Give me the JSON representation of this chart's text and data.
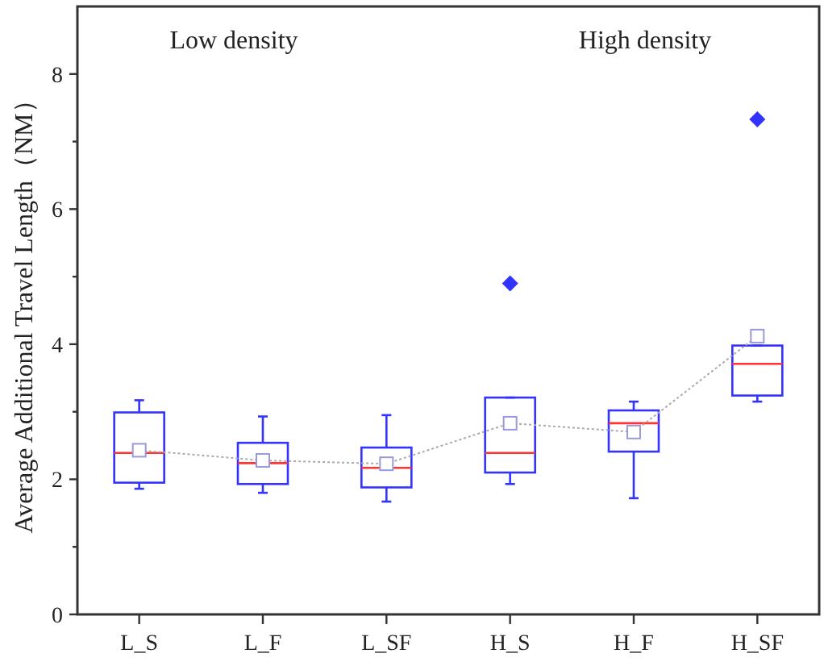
{
  "chart_data": {
    "type": "box",
    "ylabel": "Average Additional Travel Length（NM）",
    "annotations": [
      "Low density",
      "High density"
    ],
    "categories": [
      "L_S",
      "L_F",
      "L_SF",
      "H_S",
      "H_F",
      "H_SF"
    ],
    "color": "#3333ff",
    "marker": "diamond",
    "ylim": [
      0,
      9
    ],
    "yticks": [
      0,
      {
        "value": 1,
        "label": null
      },
      2,
      {
        "value": 3,
        "label": null
      },
      4,
      {
        "value": 5,
        "label": null
      },
      6,
      {
        "value": 7,
        "label": null
      },
      8
    ],
    "grid": false,
    "series": [
      {
        "type": "line",
        "color": "#aaaaaa",
        "line_style": "dotted",
        "marker": "square",
        "values": [
          2.43,
          2.28,
          2.23,
          2.83,
          2.7,
          4.12
        ]
      }
    ],
    "boxes": [
      {
        "low": 1.86,
        "q1": 1.95,
        "median": 2.39,
        "q3": 2.99,
        "high": 3.17
      },
      {
        "low": 1.8,
        "q1": 1.93,
        "median": 2.24,
        "q3": 2.54,
        "high": 2.93
      },
      {
        "low": 1.67,
        "q1": 1.88,
        "median": 2.17,
        "q3": 2.47,
        "high": 2.95
      },
      {
        "low": 1.93,
        "q1": 2.1,
        "median": 2.39,
        "q3": 3.21,
        "high": 3.21,
        "outliers": [
          4.9
        ]
      },
      {
        "low": 1.72,
        "q1": 2.41,
        "median": 2.83,
        "q3": 3.02,
        "high": 3.15
      },
      {
        "low": 3.15,
        "q1": 3.24,
        "median": 3.71,
        "q3": 3.98,
        "high": 3.98,
        "outliers": [
          7.33
        ]
      }
    ]
  }
}
